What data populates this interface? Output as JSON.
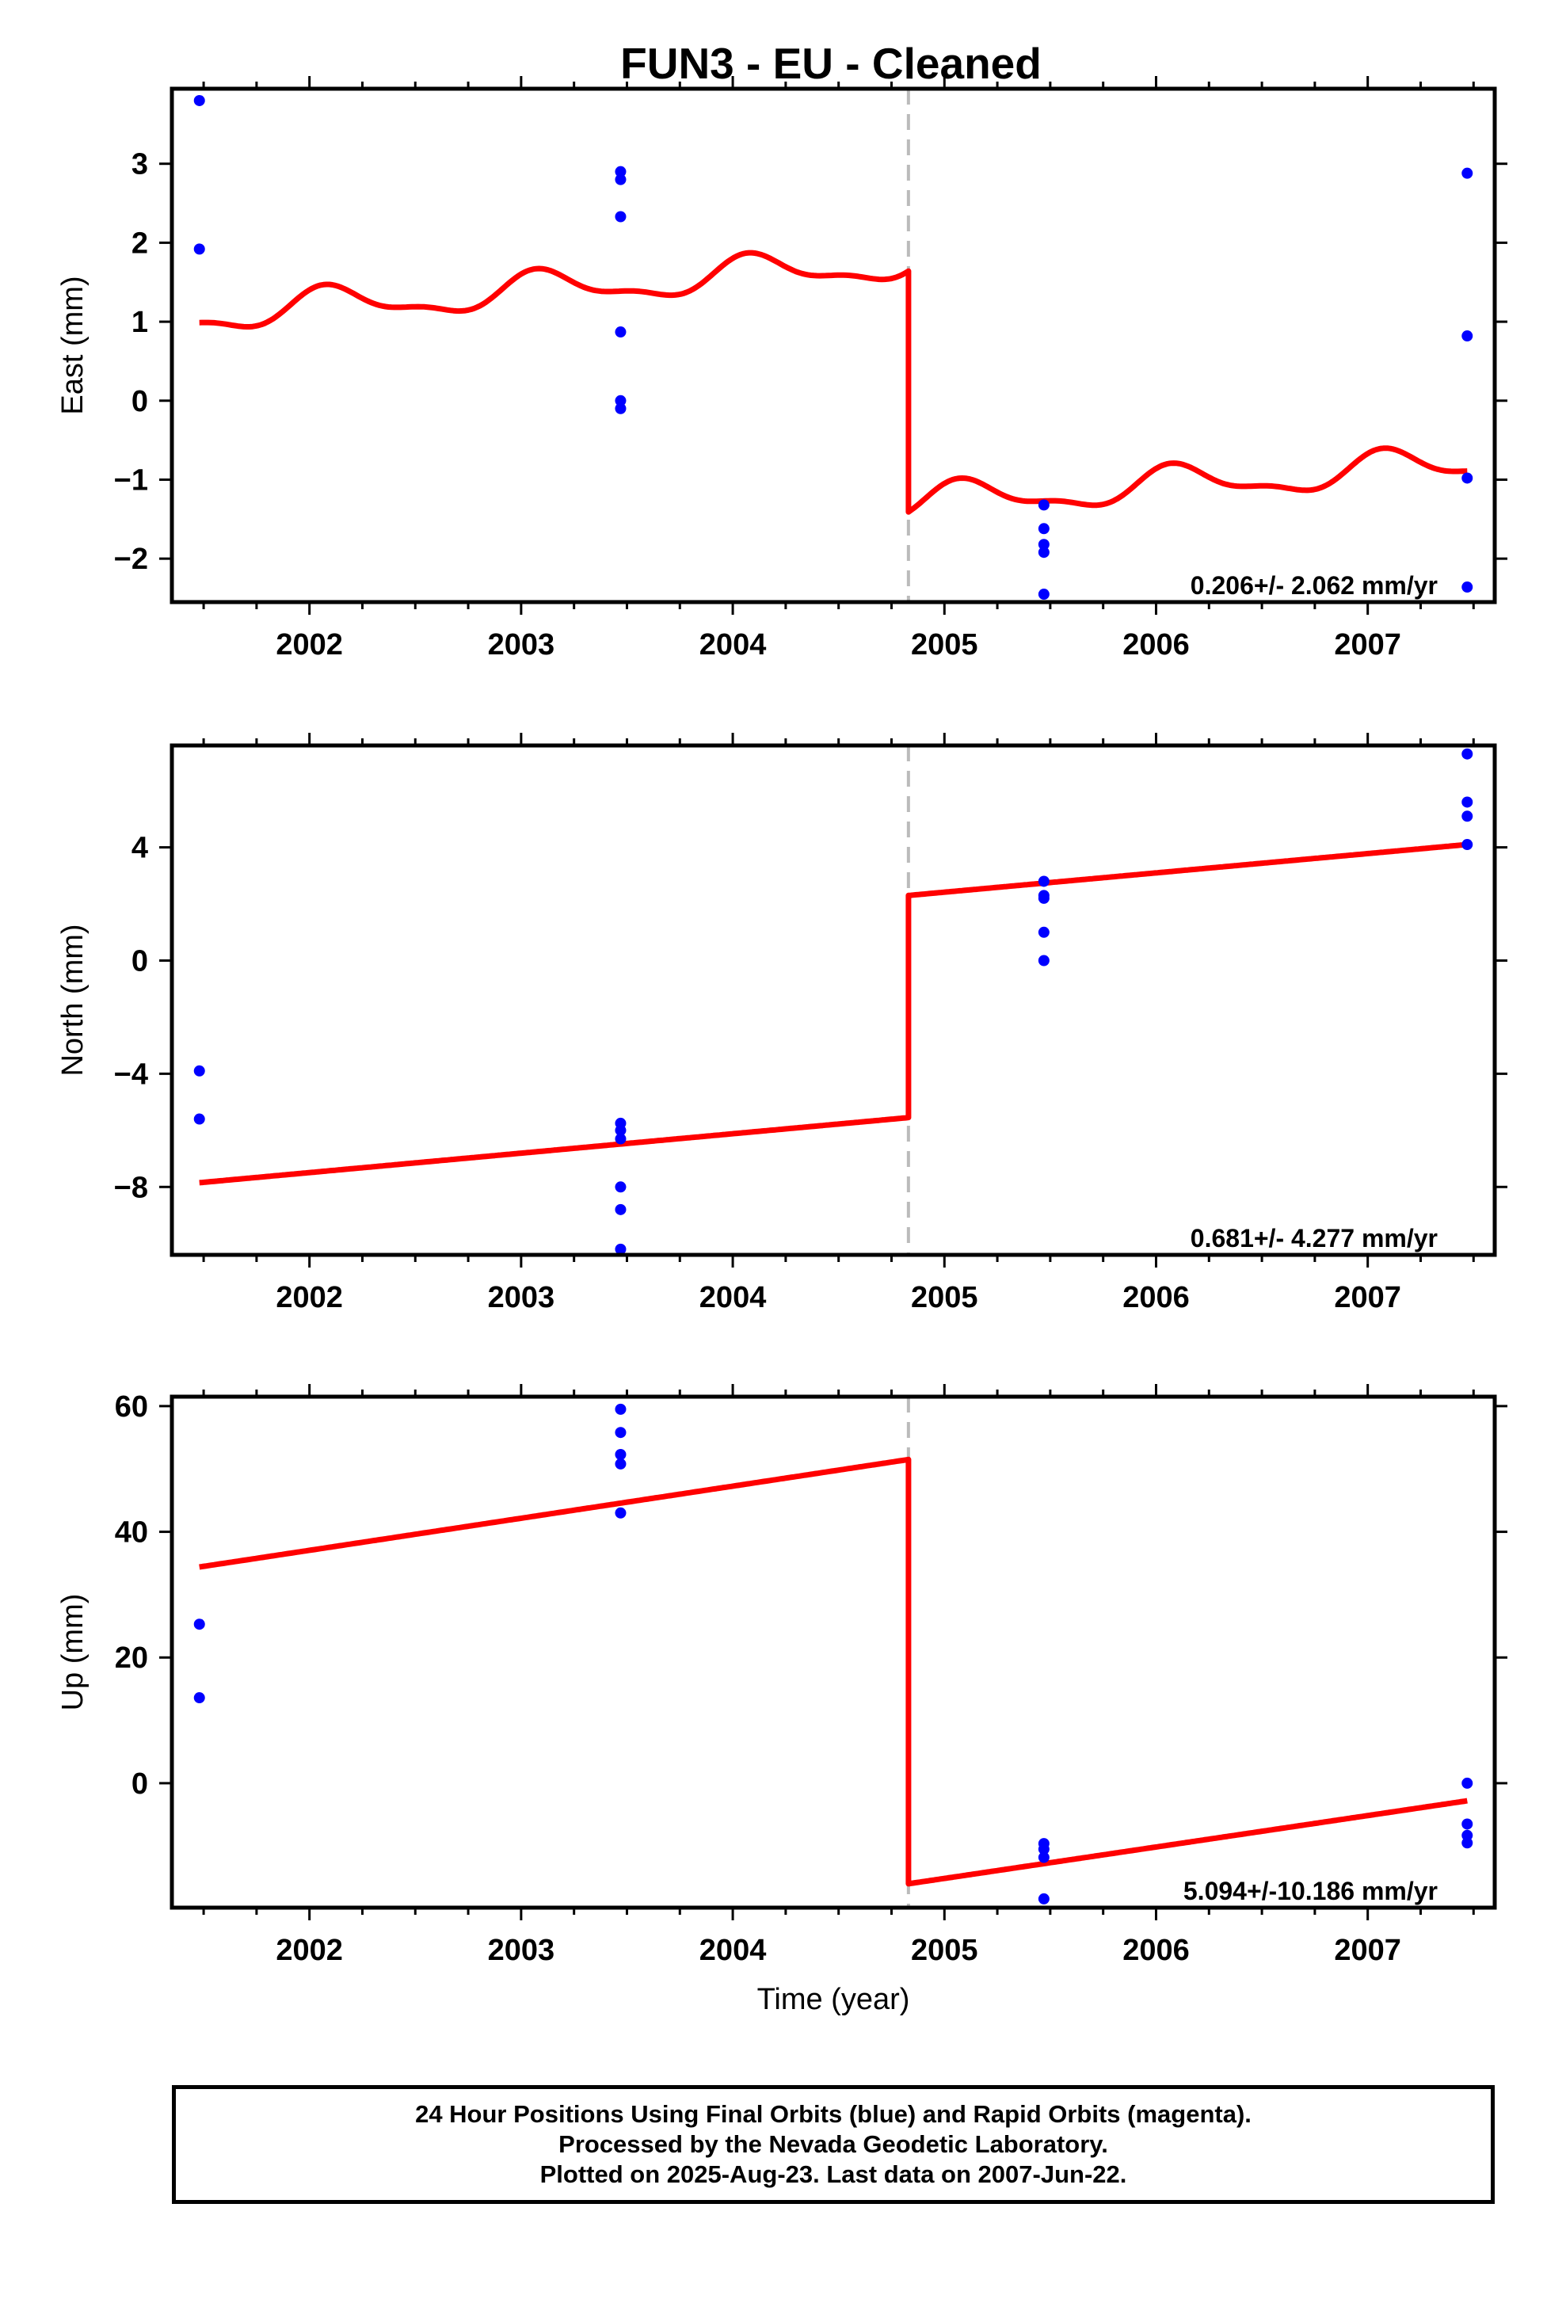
{
  "title": "FUN3  - EU - Cleaned",
  "footer": {
    "line1": "24 Hour Positions Using Final Orbits (blue) and Rapid Orbits (magenta).",
    "line2": "Processed by the Nevada Geodetic Laboratory.",
    "line3": "Plotted on 2025-Aug-23. Last data on 2007-Jun-22."
  },
  "colors": {
    "data": "#0000ff",
    "model": "#ff0000",
    "break": "#bbbbbb",
    "axis": "#000000"
  },
  "chart_data": [
    {
      "type": "scatter",
      "ylabel": "East (mm)",
      "xlabel": "",
      "xlim": [
        2001.35,
        2007.6
      ],
      "ylim": [
        -2.55,
        3.95
      ],
      "xticks": [
        2002,
        2003,
        2004,
        2005,
        2006,
        2007
      ],
      "yticks": [
        -2,
        -1,
        0,
        1,
        2,
        3
      ],
      "rate_label": "0.206+/- 2.062 mm/yr",
      "break_x": 2004.83,
      "points": [
        {
          "x": 2001.48,
          "y": 3.8
        },
        {
          "x": 2001.48,
          "y": 1.92
        },
        {
          "x": 2003.47,
          "y": 2.9
        },
        {
          "x": 2003.47,
          "y": 2.8
        },
        {
          "x": 2003.47,
          "y": 2.33
        },
        {
          "x": 2003.47,
          "y": 0.87
        },
        {
          "x": 2003.47,
          "y": 0.0
        },
        {
          "x": 2003.47,
          "y": -0.1
        },
        {
          "x": 2005.47,
          "y": -1.32
        },
        {
          "x": 2005.47,
          "y": -1.62
        },
        {
          "x": 2005.47,
          "y": -1.82
        },
        {
          "x": 2005.47,
          "y": -1.92
        },
        {
          "x": 2005.47,
          "y": -2.45
        },
        {
          "x": 2007.47,
          "y": 2.88
        },
        {
          "x": 2007.47,
          "y": 0.82
        },
        {
          "x": 2007.47,
          "y": -0.98
        },
        {
          "x": 2007.47,
          "y": -2.36
        }
      ],
      "model": {
        "segments": [
          {
            "x0": 2001.48,
            "x1": 2004.83,
            "y0": 1.08,
            "y1": 1.75
          },
          {
            "x0": 2004.83,
            "x1": 2007.47,
            "y0": -1.3,
            "y1": -0.8
          }
        ],
        "annual_amp": 0.2,
        "semiannual_amp": 0.08,
        "phase": 0.9
      }
    },
    {
      "type": "scatter",
      "ylabel": "North (mm)",
      "xlabel": "",
      "xlim": [
        2001.35,
        2007.6
      ],
      "ylim": [
        -10.4,
        7.6
      ],
      "xticks": [
        2002,
        2003,
        2004,
        2005,
        2006,
        2007
      ],
      "yticks": [
        -8,
        -4,
        0,
        4
      ],
      "rate_label": "0.681+/- 4.277 mm/yr",
      "break_x": 2004.83,
      "points": [
        {
          "x": 2001.48,
          "y": -3.9
        },
        {
          "x": 2001.48,
          "y": -5.6
        },
        {
          "x": 2003.47,
          "y": -5.75
        },
        {
          "x": 2003.47,
          "y": -6.0
        },
        {
          "x": 2003.47,
          "y": -6.3
        },
        {
          "x": 2003.47,
          "y": -8.0
        },
        {
          "x": 2003.47,
          "y": -8.8
        },
        {
          "x": 2003.47,
          "y": -10.2
        },
        {
          "x": 2005.47,
          "y": 2.8
        },
        {
          "x": 2005.47,
          "y": 2.3
        },
        {
          "x": 2005.47,
          "y": 2.2
        },
        {
          "x": 2005.47,
          "y": 1.0
        },
        {
          "x": 2005.47,
          "y": 0.0
        },
        {
          "x": 2007.47,
          "y": 7.3
        },
        {
          "x": 2007.47,
          "y": 5.6
        },
        {
          "x": 2007.47,
          "y": 5.1
        },
        {
          "x": 2007.47,
          "y": 4.1
        }
      ],
      "model": {
        "segments": [
          {
            "x0": 2001.48,
            "x1": 2004.83,
            "y0": -7.85,
            "y1": -5.55
          },
          {
            "x0": 2004.83,
            "x1": 2007.47,
            "y0": 2.3,
            "y1": 4.1
          }
        ],
        "annual_amp": 0,
        "semiannual_amp": 0,
        "phase": 0
      }
    },
    {
      "type": "scatter",
      "ylabel": "Up (mm)",
      "xlabel": "Time (year)",
      "xlim": [
        2001.35,
        2007.6
      ],
      "ylim": [
        -19.8,
        61.5
      ],
      "xticks": [
        2002,
        2003,
        2004,
        2005,
        2006,
        2007
      ],
      "yticks": [
        0,
        20,
        40,
        60
      ],
      "rate_label": "5.094+/-10.186 mm/yr",
      "break_x": 2004.83,
      "points": [
        {
          "x": 2001.48,
          "y": 25.3
        },
        {
          "x": 2001.48,
          "y": 13.6
        },
        {
          "x": 2003.47,
          "y": 59.5
        },
        {
          "x": 2003.47,
          "y": 55.8
        },
        {
          "x": 2003.47,
          "y": 52.3
        },
        {
          "x": 2003.47,
          "y": 50.8
        },
        {
          "x": 2003.47,
          "y": 43.0
        },
        {
          "x": 2005.47,
          "y": -9.6
        },
        {
          "x": 2005.47,
          "y": -10.5
        },
        {
          "x": 2005.47,
          "y": -11.8
        },
        {
          "x": 2005.47,
          "y": -18.4
        },
        {
          "x": 2007.47,
          "y": 0.0
        },
        {
          "x": 2007.47,
          "y": -6.5
        },
        {
          "x": 2007.47,
          "y": -8.3
        },
        {
          "x": 2007.47,
          "y": -9.5
        }
      ],
      "model": {
        "segments": [
          {
            "x0": 2001.48,
            "x1": 2004.83,
            "y0": 34.4,
            "y1": 51.5
          },
          {
            "x0": 2004.83,
            "x1": 2007.47,
            "y0": -16.0,
            "y1": -2.8
          }
        ],
        "annual_amp": 0,
        "semiannual_amp": 0,
        "phase": 0
      }
    }
  ]
}
